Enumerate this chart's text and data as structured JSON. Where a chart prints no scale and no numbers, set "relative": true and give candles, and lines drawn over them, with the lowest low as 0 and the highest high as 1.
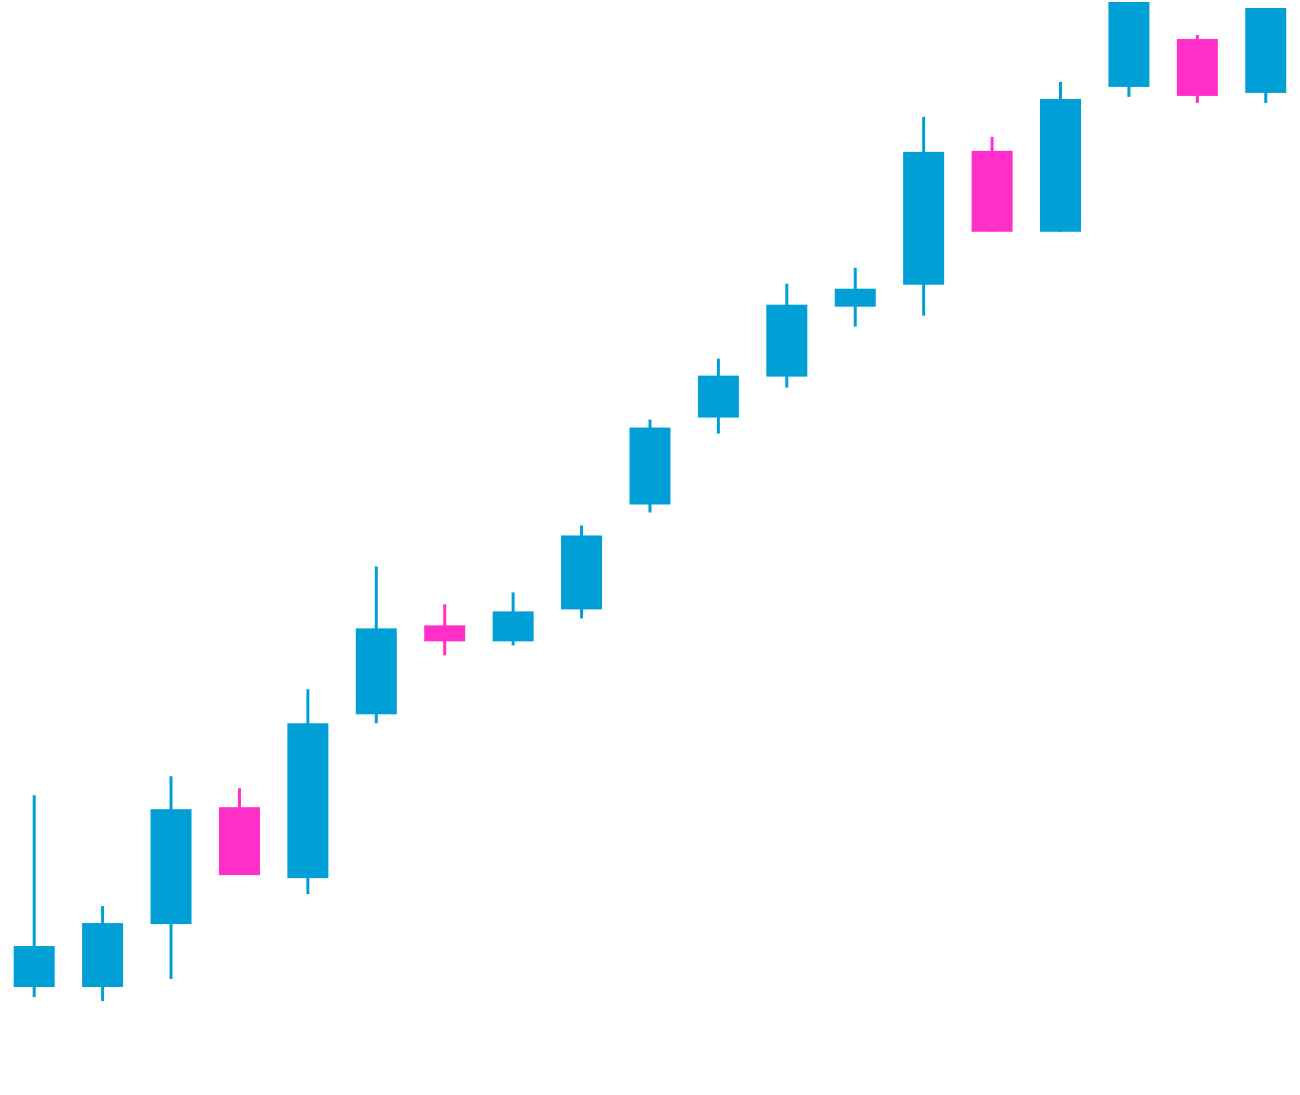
{
  "chart_data": {
    "type": "candlestick",
    "relative": true,
    "categories": [
      null,
      null,
      null,
      null,
      null,
      null,
      null,
      null,
      null,
      null,
      null,
      null,
      null,
      null,
      null,
      null,
      null,
      null,
      null
    ],
    "ohlc": [
      [
        0.014,
        0.206,
        0.004,
        0.055
      ],
      [
        0.014,
        0.095,
        0,
        0.078
      ],
      [
        0.077,
        0.225,
        0.022,
        0.192
      ],
      [
        0.194,
        0.213,
        0.126,
        0.126
      ],
      [
        0.123,
        0.312,
        0.107,
        0.278
      ],
      [
        0.287,
        0.435,
        0.278,
        0.373
      ],
      [
        0.376,
        0.397,
        0.346,
        0.36
      ],
      [
        0.36,
        0.409,
        0.356,
        0.39
      ],
      [
        0.392,
        0.476,
        0.383,
        0.466
      ],
      [
        0.497,
        0.582,
        0.489,
        0.574
      ],
      [
        0.584,
        0.643,
        0.568,
        0.626
      ],
      [
        0.625,
        0.718,
        0.614,
        0.697
      ],
      [
        0.695,
        0.734,
        0.675,
        0.713
      ],
      [
        0.717,
        0.885,
        0.686,
        0.85
      ],
      [
        0.851,
        0.865,
        0.77,
        0.77
      ],
      [
        0.77,
        0.92,
        0.77,
        0.903
      ],
      [
        0.915,
        1,
        0.905,
        1
      ],
      [
        0.963,
        0.967,
        0.899,
        0.906
      ],
      [
        0.909,
        0.994,
        0.899,
        0.994
      ]
    ],
    "colors": [
      "#00a0d6",
      "#00a0d6",
      "#00a0d6",
      "#ff2fc8",
      "#00a0d6",
      "#00a0d6",
      "#ff2fc8",
      "#00a0d6",
      "#00a0d6",
      "#00a0d6",
      "#00a0d6",
      "#00a0d6",
      "#00a0d6",
      "#00a0d6",
      "#ff2fc8",
      "#00a0d6",
      "#00a0d6",
      "#ff2fc8",
      "#00a0d6"
    ]
  }
}
